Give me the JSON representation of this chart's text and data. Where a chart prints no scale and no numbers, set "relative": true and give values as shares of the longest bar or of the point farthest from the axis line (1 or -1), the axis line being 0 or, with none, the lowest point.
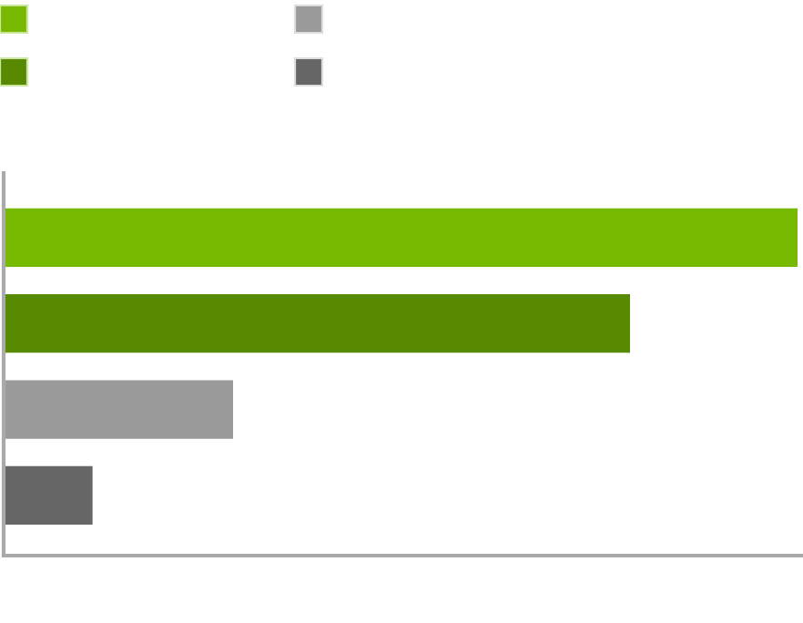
{
  "chart_data": {
    "type": "bar",
    "orientation": "horizontal",
    "relative": true,
    "categories": [
      null,
      null,
      null,
      null
    ],
    "values": [
      1,
      0.789,
      0.289,
      0.112
    ],
    "colors": [
      "#76b900",
      "#578a00",
      "#9a9a9a",
      "#666666"
    ],
    "grid": false
  }
}
